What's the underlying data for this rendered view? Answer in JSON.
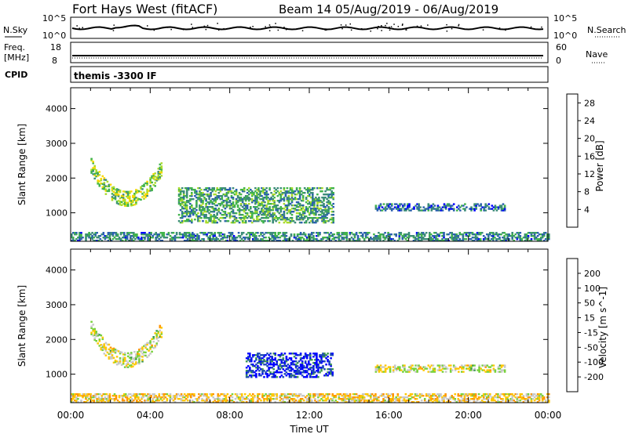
{
  "header": {
    "title": "Fort Hays West (fitACF)",
    "beam_label": "Beam 14 05/Aug/2019 - 06/Aug/2019"
  },
  "top_panels": {
    "nsky": {
      "label": "N.Sky",
      "ticks": [
        "10^5",
        "10^0"
      ],
      "right_label": "N.Search",
      "right_ticks": [
        "10^5",
        "10^0"
      ]
    },
    "freq": {
      "label_line1": "Freq.",
      "label_line2": "[MHz]",
      "ticks": [
        "18",
        "8"
      ],
      "right_label": "Nave",
      "right_ticks": [
        "60",
        "0"
      ]
    },
    "cpid": {
      "label": "CPID",
      "value": "themis -3300 IF"
    }
  },
  "axes": {
    "xlabel": "Time UT",
    "ylabel": "Slant Range [km]",
    "x_ticks": [
      "00:00",
      "04:00",
      "08:00",
      "12:00",
      "16:00",
      "20:00",
      "00:00"
    ],
    "y_ticks": [
      "1000",
      "2000",
      "3000",
      "4000"
    ],
    "xlim_hours": [
      0,
      24
    ],
    "ylim_km": [
      180,
      4600
    ]
  },
  "chart_data": [
    {
      "type": "heatmap",
      "title": "",
      "colorbar_label": "Power [dB]",
      "colorbar_ticks": [
        "4",
        "8",
        "12",
        "16",
        "20",
        "24",
        "28"
      ],
      "zlim": [
        0,
        30
      ],
      "colors": [
        "#0000ff",
        "#2a5fb0",
        "#3c8c78",
        "#41b44b",
        "#aadc2d",
        "#ffd700",
        "#ff9600",
        "#ff5000",
        "#ff0000"
      ],
      "regions": [
        {
          "name": "arc",
          "t_start": 1.0,
          "t_end": 4.6,
          "r_min": 1150,
          "r_max": 2500,
          "value": 14
        },
        {
          "name": "near-range",
          "t_start": 0.0,
          "t_end": 24.0,
          "r_min": 180,
          "r_max": 420,
          "value": 8
        },
        {
          "name": "mid",
          "t_start": 5.4,
          "t_end": 13.2,
          "r_min": 700,
          "r_max": 1700,
          "value": 10
        },
        {
          "name": "late",
          "t_start": 15.3,
          "t_end": 21.8,
          "r_min": 1050,
          "r_max": 1250,
          "value": 6
        }
      ]
    },
    {
      "type": "heatmap",
      "title": "",
      "colorbar_label": "Velocity [m s^-1]",
      "colorbar_ticks": [
        "200",
        "100",
        "50",
        "15",
        "-15",
        "-50",
        "-100",
        "-200"
      ],
      "zlim": [
        -250,
        250
      ],
      "colors": [
        "#ff0000",
        "#ff5a00",
        "#ff9600",
        "#ffc800",
        "#c8c8c8",
        "#78d23c",
        "#3c9650",
        "#1e4bb4",
        "#0000ff"
      ],
      "regions": [
        {
          "name": "arc",
          "t_start": 1.0,
          "t_end": 4.6,
          "r_min": 1150,
          "r_max": 2500,
          "value": 0
        },
        {
          "name": "near-range",
          "t_start": 0.0,
          "t_end": 24.0,
          "r_min": 180,
          "r_max": 420,
          "value": -40
        },
        {
          "name": "flow",
          "t_start": 8.8,
          "t_end": 13.2,
          "r_min": 900,
          "r_max": 1600,
          "value": 200
        },
        {
          "name": "late",
          "t_start": 15.3,
          "t_end": 21.8,
          "r_min": 1050,
          "r_max": 1250,
          "value": 0
        }
      ]
    }
  ]
}
